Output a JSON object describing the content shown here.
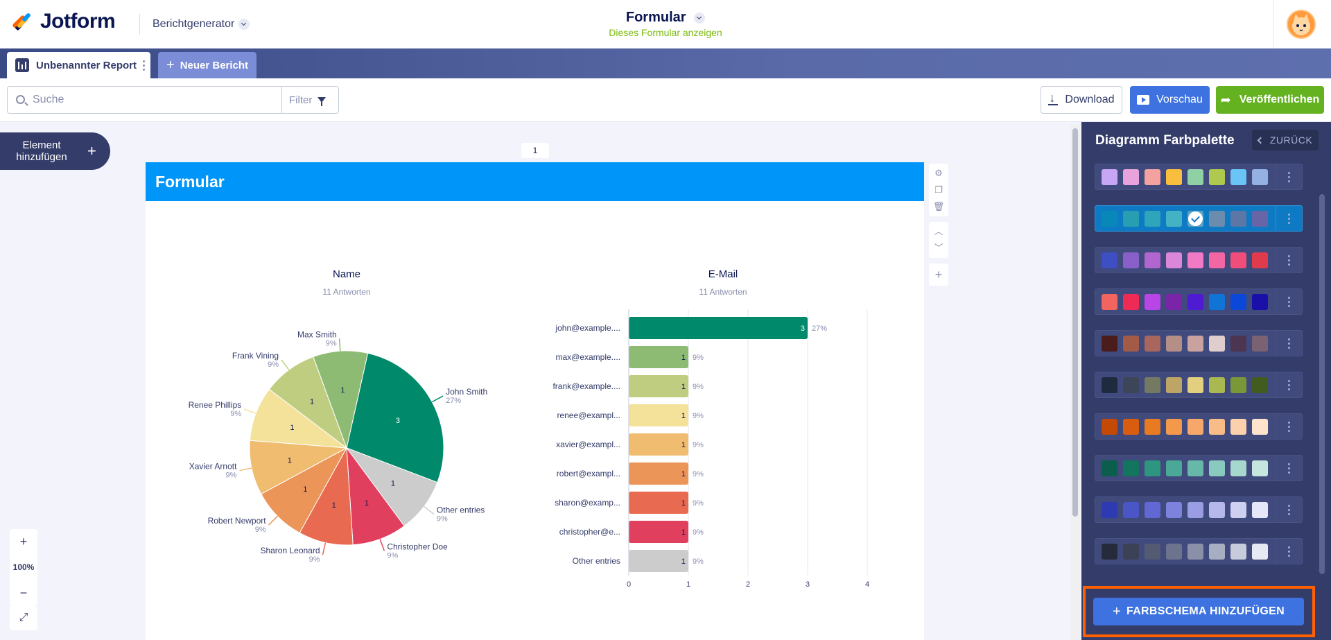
{
  "header": {
    "brand": "Jotform",
    "app_name": "Berichtgenerator",
    "form_title": "Formular",
    "form_subtitle": "Dieses Formular anzeigen"
  },
  "tabs": {
    "active_label": "Unbenannter Report",
    "new_label": "Neuer Bericht"
  },
  "toolbar": {
    "search_placeholder": "Suche",
    "filter_label": "Filter",
    "download_label": "Download",
    "preview_label": "Vorschau",
    "publish_label": "Veröffentlichen"
  },
  "canvas": {
    "add_element_label": "Element hinzufügen",
    "page_number": "1",
    "report_title": "Formular",
    "zoom_level": "100%"
  },
  "chart_data": [
    {
      "type": "pie",
      "title": "Name",
      "subtitle": "11 Antworten",
      "slices": [
        {
          "label": "John Smith",
          "value": 3,
          "percent": "27%",
          "color": "#00896a"
        },
        {
          "label": "Other entries",
          "value": 1,
          "percent": "9%",
          "color": "#cccccc"
        },
        {
          "label": "Christopher Doe",
          "value": 1,
          "percent": "9%",
          "color": "#e0405e"
        },
        {
          "label": "Sharon Leonard",
          "value": 1,
          "percent": "9%",
          "color": "#e86a50"
        },
        {
          "label": "Robert Newport",
          "value": 1,
          "percent": "9%",
          "color": "#ec9559"
        },
        {
          "label": "Xavier Arnott",
          "value": 1,
          "percent": "9%",
          "color": "#f0bc70"
        },
        {
          "label": "Renee Phillips",
          "value": 1,
          "percent": "9%",
          "color": "#f4e29a"
        },
        {
          "label": "Frank Vining",
          "value": 1,
          "percent": "9%",
          "color": "#bfcd81"
        },
        {
          "label": "Max Smith",
          "value": 1,
          "percent": "9%",
          "color": "#8ebb74"
        }
      ]
    },
    {
      "type": "bar",
      "orientation": "horizontal",
      "title": "E-Mail",
      "subtitle": "11 Antworten",
      "categories": [
        "john@example....",
        "max@example....",
        "frank@example....",
        "renee@exampl...",
        "xavier@exampl...",
        "robert@exampl...",
        "sharon@examp...",
        "christopher@e...",
        "Other entries"
      ],
      "values": [
        3,
        1,
        1,
        1,
        1,
        1,
        1,
        1,
        1
      ],
      "percents": [
        "27%",
        "9%",
        "9%",
        "9%",
        "9%",
        "9%",
        "9%",
        "9%",
        "9%"
      ],
      "colors": [
        "#00896a",
        "#8ebb74",
        "#bfcd81",
        "#f4e29a",
        "#f0bc70",
        "#ec9559",
        "#e86a50",
        "#e0405e",
        "#cccccc"
      ],
      "xlim": [
        0,
        4
      ],
      "xticks": [
        "0",
        "1",
        "2",
        "3",
        "4"
      ],
      "grid": true
    }
  ],
  "panel": {
    "title": "Diagramm Farbpalette",
    "back_label": "ZURÜCK",
    "add_scheme_label": "FARBSCHEMA HINZUFÜGEN",
    "selected_index": 1,
    "palettes": [
      [
        "#c8a6f5",
        "#e8a3dc",
        "#f3a2a0",
        "#f9be3e",
        "#8fd1a4",
        "#aec94e",
        "#6ac4f5",
        "#93b1e3"
      ],
      [
        "#0788b9",
        "#279eb2",
        "#2ea5ba",
        "#45b2c3",
        "#5aa5c5",
        "#6c8cad",
        "#5c76a5",
        "#6865a7"
      ],
      [
        "#3d4fc3",
        "#8960c9",
        "#b166cf",
        "#db86d8",
        "#f07ac6",
        "#f267a3",
        "#ef4d7a",
        "#e23a4d"
      ],
      [
        "#f2655e",
        "#ef2a55",
        "#b945e6",
        "#7a25a8",
        "#4e1bd3",
        "#1073d6",
        "#0b47d9",
        "#1a0fa9"
      ],
      [
        "#4a1c1c",
        "#a35b48",
        "#a8665c",
        "#b58e85",
        "#c9a2a0",
        "#e0cdcd",
        "#4b3550",
        "#7a6272"
      ],
      [
        "#1e2a3e",
        "#3d4558",
        "#747961",
        "#bda665",
        "#e2cf7f",
        "#aab851",
        "#7a9838",
        "#425c20"
      ],
      [
        "#c24906",
        "#d85d10",
        "#e87b22",
        "#f3994b",
        "#f6a86a",
        "#f8bc89",
        "#fad0ad",
        "#fde3cc"
      ],
      [
        "#0b5d4c",
        "#14755f",
        "#2e9680",
        "#4aa996",
        "#67b8a8",
        "#8ac9bd",
        "#a7d8ce",
        "#c4e6df"
      ],
      [
        "#2e3ab1",
        "#4a55c6",
        "#6168d3",
        "#7d82dc",
        "#9a9de3",
        "#b6b7ea",
        "#cecff1",
        "#e5e6f8"
      ],
      [
        "#262b3b",
        "#3c4256",
        "#535a72",
        "#6c738d",
        "#8990a8",
        "#a8aec2",
        "#c7cbdb",
        "#e6e8f3"
      ]
    ]
  }
}
